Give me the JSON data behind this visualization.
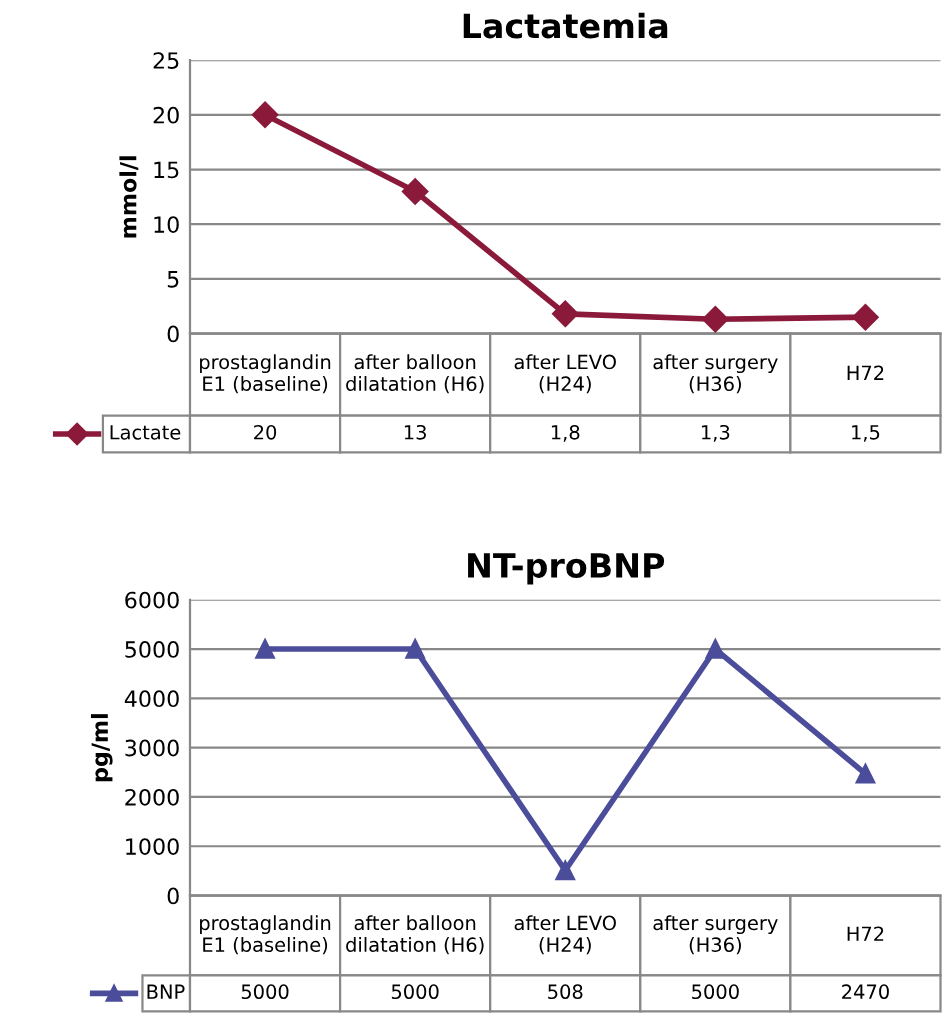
{
  "chart_data": [
    {
      "type": "line",
      "title": "Lactatemia",
      "ylabel": "mmol/l",
      "categories": [
        "prostaglandin\nE1 (baseline)",
        "after balloon\ndilatation (H6)",
        "after LEVO\n(H24)",
        "after surgery\n(H36)",
        "H72"
      ],
      "series": [
        {
          "name": "Lactate",
          "color": "#8b1a3a",
          "values": [
            20,
            13,
            1.8,
            1.3,
            1.5
          ],
          "value_labels": [
            "20",
            "13",
            "1,8",
            "1,3",
            "1,5"
          ]
        }
      ],
      "ylim": [
        0,
        25
      ],
      "yticks": [
        0,
        5,
        10,
        15,
        20,
        25
      ],
      "grid": "y",
      "marker": "diamond",
      "line_style": "solid"
    },
    {
      "type": "line",
      "title": "NT-proBNP",
      "ylabel": "pg/ml",
      "categories": [
        "prostaglandin\nE1 (baseline)",
        "after balloon\ndilatation (H6)",
        "after LEVO\n(H24)",
        "after surgery\n(H36)",
        "H72"
      ],
      "series": [
        {
          "name": "BNP",
          "color": "#4b4d9a",
          "values": [
            5000,
            5000,
            508,
            5000,
            2470
          ],
          "value_labels": [
            "5000",
            "5000",
            "508",
            "5000",
            "2470"
          ]
        }
      ],
      "ylim": [
        0,
        6000
      ],
      "yticks": [
        0,
        1000,
        2000,
        3000,
        4000,
        5000,
        6000
      ],
      "grid": "y",
      "marker": "triangle",
      "line_style": "solid"
    }
  ]
}
